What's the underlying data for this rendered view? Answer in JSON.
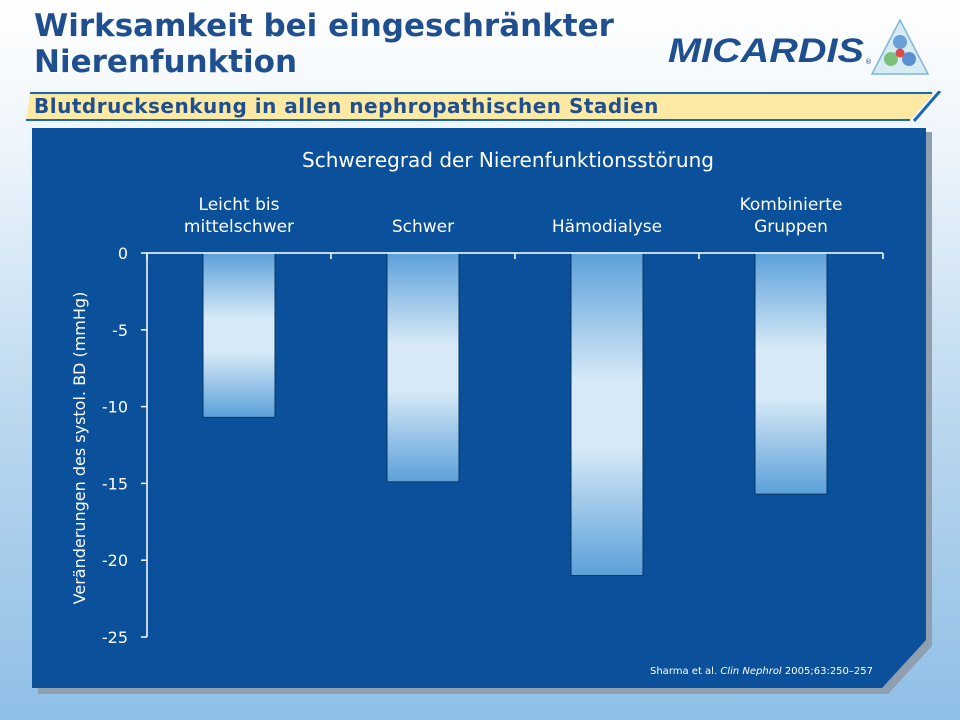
{
  "slide": {
    "title": "Wirksamkeit bei eingeschränkter Nierenfunktion",
    "subtitle": "Blutdrucksenkung in allen nephropathischen Stadien",
    "logo_text": "MICARDIS"
  },
  "chart_data": {
    "type": "bar",
    "title": "Schweregrad der Nierenfunktionsstörung",
    "categories": [
      "Leicht bis mittelschwer",
      "Schwer",
      "Hämodialyse",
      "Kombinierte Gruppen"
    ],
    "category_label_lines": [
      [
        "Leicht bis",
        "mittelschwer"
      ],
      [
        "Schwer"
      ],
      [
        "Hämodialyse"
      ],
      [
        "Kombinierte",
        "Gruppen"
      ]
    ],
    "values": [
      -10.7,
      -14.9,
      -21.0,
      -15.7
    ],
    "xlabel": "",
    "ylabel": "Veränderungen des systol. BD (mmHg)",
    "ylim": [
      -25,
      0
    ],
    "yticks": [
      0,
      -5,
      -10,
      -15,
      -20,
      -25
    ],
    "ytick_labels": [
      "0",
      "-5",
      "-10",
      "-15",
      "-20",
      "-25"
    ],
    "x_axis_position": "top",
    "grid": false,
    "legend": "none"
  },
  "citation": {
    "author": "Sharma et al.",
    "journal": "Clin Nephrol",
    "details": "2005;63:250–257"
  },
  "colors": {
    "title": "#1f4f8e",
    "panel": "#0a509a",
    "panel_shadow": "#8f9fb0",
    "band": "#fbe9a4",
    "band_accent": "#1c66b6",
    "bar_mid": "#d8eaf7",
    "bar_edge": "#5ba0d9",
    "axis": "#ffffff"
  }
}
